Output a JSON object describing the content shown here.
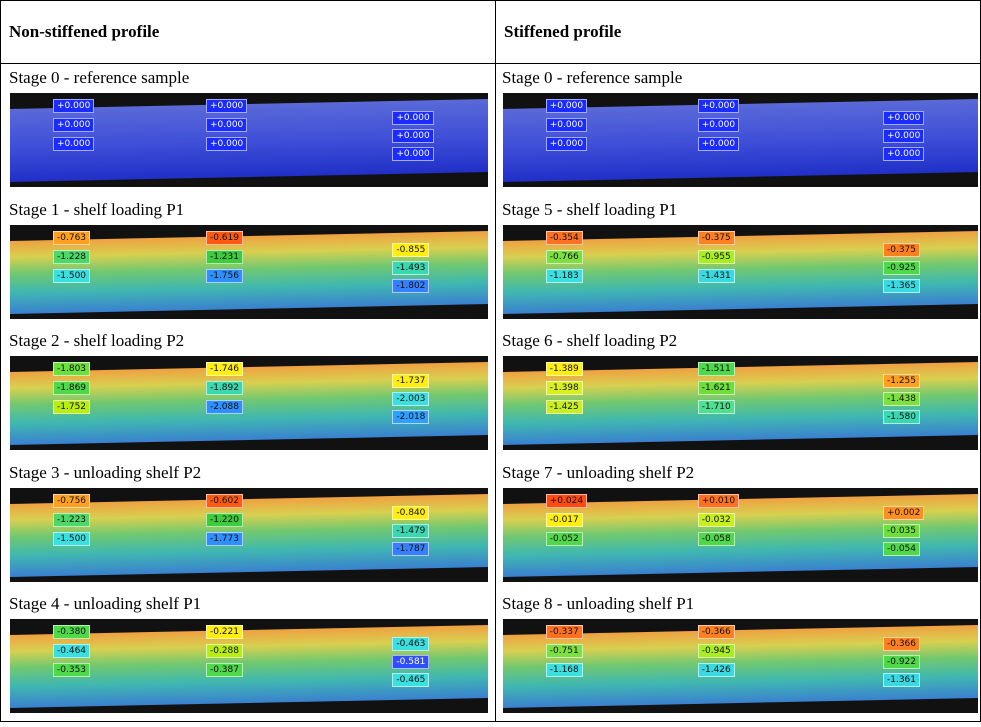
{
  "table": {
    "header": [
      "Non-stiffened profile",
      "Stiffened profile"
    ],
    "rows": [
      [
        {
          "caption": "Stage 0 - reference sample",
          "labels": [
            [
              "+0.000",
              "+0.000",
              "+0.000"
            ],
            [
              "+0.000",
              "+0.000",
              "+0.000"
            ],
            [
              "+0.000",
              "+0.000",
              "+0.000"
            ]
          ],
          "label_colors": [
            [
              "#1a2cff",
              "#1a2cff",
              "#1a2cff"
            ],
            [
              "#1a2cff",
              "#1a2cff",
              "#1a2cff"
            ],
            [
              "#1a2cff",
              "#1a2cff",
              "#1a2cff"
            ]
          ]
        },
        {
          "caption": "Stage 0 - reference sample",
          "labels": [
            [
              "+0.000",
              "+0.000",
              "+0.000"
            ],
            [
              "+0.000",
              "+0.000",
              "+0.000"
            ],
            [
              "+0.000",
              "+0.000",
              "+0.000"
            ]
          ],
          "label_colors": [
            [
              "#1a2cff",
              "#1a2cff",
              "#1a2cff"
            ],
            [
              "#1a2cff",
              "#1a2cff",
              "#1a2cff"
            ],
            [
              "#1a2cff",
              "#1a2cff",
              "#1a2cff"
            ]
          ]
        }
      ],
      [
        {
          "caption": "Stage 1 - shelf loading P1",
          "labels": [
            [
              "-0.763",
              "-1.228",
              "-1.500"
            ],
            [
              "-0.619",
              "-1.231",
              "-1.756"
            ],
            [
              "-0.855",
              "-1.493",
              "-1.802"
            ]
          ],
          "label_colors": [
            [
              "#ffa020",
              "#4ed86a",
              "#3adfe0"
            ],
            [
              "#ff5a10",
              "#3ccc3c",
              "#2f8fff"
            ],
            [
              "#ffee10",
              "#3ad8b0",
              "#3580ff"
            ]
          ]
        },
        {
          "caption": "Stage 5 - shelf loading P1",
          "labels": [
            [
              "-0.354",
              "-0.766",
              "-1.183"
            ],
            [
              "-0.375",
              "-0.955",
              "-1.431"
            ],
            [
              "-0.375",
              "-0.925",
              "-1.365"
            ]
          ],
          "label_colors": [
            [
              "#ff7020",
              "#7ee040",
              "#3adfe0"
            ],
            [
              "#ff8020",
              "#a8ee20",
              "#3ad8e0"
            ],
            [
              "#ff8020",
              "#4ed84a",
              "#3ad8e0"
            ]
          ]
        }
      ],
      [
        {
          "caption": "Stage 2 - shelf loading P2",
          "labels": [
            [
              "-1.803",
              "-1.869",
              "-1.752"
            ],
            [
              "-1.746",
              "-1.892",
              "-2.088"
            ],
            [
              "-1.737",
              "-2.003",
              "-2.018"
            ]
          ],
          "label_colors": [
            [
              "#6ede3a",
              "#4ed84a",
              "#b8ef10"
            ],
            [
              "#ffee10",
              "#3ad8b0",
              "#2f8fff"
            ],
            [
              "#ffee10",
              "#3adfe0",
              "#2fa0ff"
            ]
          ]
        },
        {
          "caption": "Stage 6 - shelf loading P2",
          "labels": [
            [
              "-1.389",
              "-1.398",
              "-1.425"
            ],
            [
              "-1.511",
              "-1.621",
              "-1.710"
            ],
            [
              "-1.255",
              "-1.438",
              "-1.580"
            ]
          ],
          "label_colors": [
            [
              "#ffee10",
              "#d8f020",
              "#c8f020"
            ],
            [
              "#4ed84a",
              "#6ede3a",
              "#4ee090"
            ],
            [
              "#ffa020",
              "#7ee040",
              "#3ad8b0"
            ]
          ]
        }
      ],
      [
        {
          "caption": "Stage 3 - unloading shelf P2",
          "labels": [
            [
              "-0.756",
              "-1.223",
              "-1.500"
            ],
            [
              "-0.602",
              "-1.220",
              "-1.773"
            ],
            [
              "-0.840",
              "-1.479",
              "-1.787"
            ]
          ],
          "label_colors": [
            [
              "#ffa020",
              "#4ed86a",
              "#3adfe0"
            ],
            [
              "#ff5a10",
              "#3ccc3c",
              "#2f8fff"
            ],
            [
              "#ffee10",
              "#3ad8b0",
              "#3580ff"
            ]
          ]
        },
        {
          "caption": "Stage 7 - unloading shelf P2",
          "labels": [
            [
              "+0.024",
              "-0.017",
              "-0.052"
            ],
            [
              "+0.010",
              "-0.032",
              "-0.058"
            ],
            [
              "+0.002",
              "-0.035",
              "-0.054"
            ]
          ],
          "label_colors": [
            [
              "#ff4a10",
              "#ffee10",
              "#4ed84a"
            ],
            [
              "#ff7020",
              "#c8f020",
              "#4ed84a"
            ],
            [
              "#ff9020",
              "#6ede3a",
              "#4ed84a"
            ]
          ]
        }
      ],
      [
        {
          "caption": "Stage 4 - unloading shelf P1",
          "labels": [
            [
              "-0.380",
              "-0.464",
              "-0.353"
            ],
            [
              "-0.221",
              "-0.288",
              "-0.387"
            ],
            [
              "-0.463",
              "-0.581",
              "-0.465"
            ]
          ],
          "label_colors": [
            [
              "#4ed84a",
              "#3adfe0",
              "#4ed84a"
            ],
            [
              "#ffee10",
              "#b8ef10",
              "#4ed84a"
            ],
            [
              "#3adfe0",
              "#2f4fff",
              "#3adfe0"
            ]
          ]
        },
        {
          "caption": "Stage 8 - unloading shelf P1",
          "labels": [
            [
              "-0.337",
              "-0.751",
              "-1.168"
            ],
            [
              "-0.366",
              "-0.945",
              "-1.426"
            ],
            [
              "-0.366",
              "-0.922",
              "-1.361"
            ]
          ],
          "label_colors": [
            [
              "#ff7020",
              "#7ee040",
              "#3adfe0"
            ],
            [
              "#ff8020",
              "#a8ee20",
              "#3ad8e0"
            ],
            [
              "#ff8020",
              "#4ed84a",
              "#3ad8e0"
            ]
          ]
        }
      ]
    ]
  }
}
